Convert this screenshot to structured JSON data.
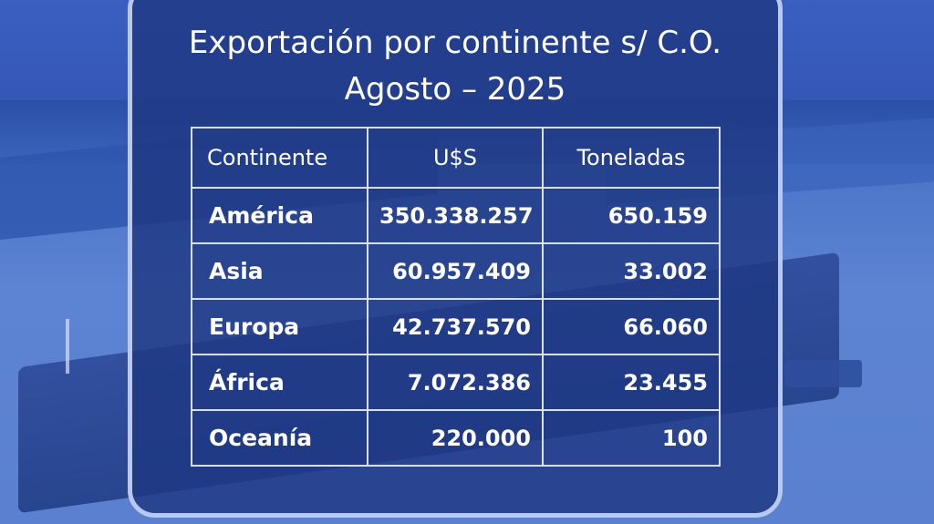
{
  "title_lines": [
    "Exportación por continente s/ C.O.",
    "Agosto – 2025"
  ],
  "table": {
    "headers": [
      "Continente",
      "U$S",
      "Toneladas"
    ],
    "rows": [
      [
        "América",
        "350.338.257",
        "650.159"
      ],
      [
        "Asia",
        "60.957.409",
        "33.002"
      ],
      [
        "Europa",
        "42.737.570",
        "66.060"
      ],
      [
        "África",
        "7.072.386",
        "23.455"
      ],
      [
        "Oceanía",
        "220.000",
        "100"
      ]
    ]
  },
  "colors": {
    "panel": "#1e3882",
    "panel_border": "#b9c9ec",
    "text": "#ffffff",
    "background": "#4a6fc4"
  }
}
